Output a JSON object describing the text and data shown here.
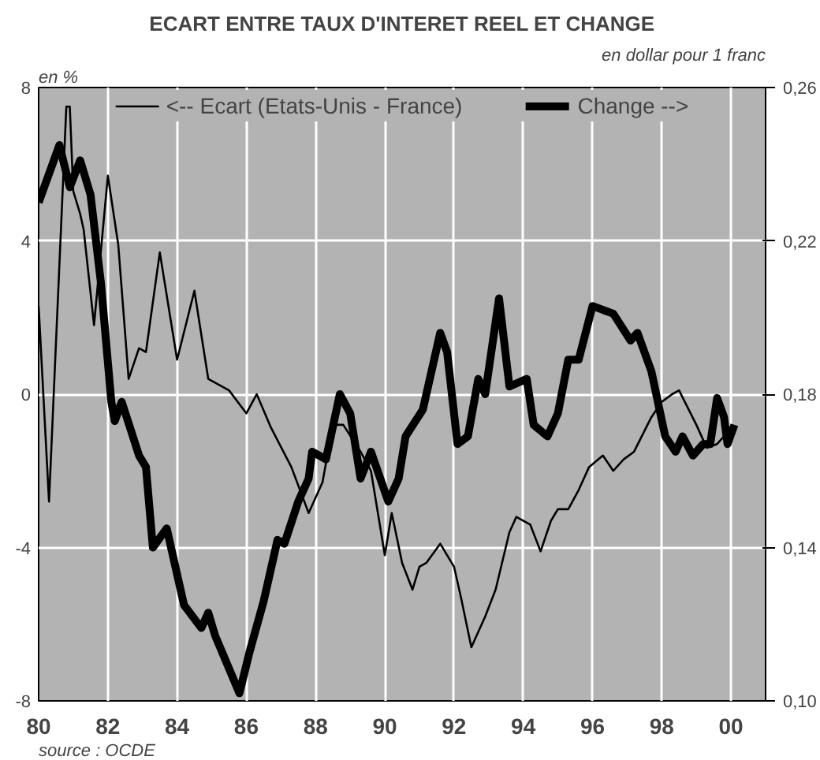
{
  "chart_data": {
    "type": "line",
    "title": "ECART ENTRE TAUX D'INTERET REEL ET CHANGE",
    "ylabel": "en %",
    "y2label": "en dollar pour 1 franc",
    "annotations": [
      "source : OCDE"
    ],
    "xlim": [
      1980,
      2001
    ],
    "xticks": [
      {
        "value": 1980,
        "label": "80"
      },
      {
        "value": 1982,
        "label": "82"
      },
      {
        "value": 1984,
        "label": "84"
      },
      {
        "value": 1986,
        "label": "86"
      },
      {
        "value": 1988,
        "label": "88"
      },
      {
        "value": 1990,
        "label": "90"
      },
      {
        "value": 1992,
        "label": "92"
      },
      {
        "value": 1994,
        "label": "94"
      },
      {
        "value": 1996,
        "label": "96"
      },
      {
        "value": 1998,
        "label": "98"
      },
      {
        "value": 2000,
        "label": "00"
      }
    ],
    "ylim": [
      -8,
      8
    ],
    "yticks": [
      -8,
      -4,
      0,
      4,
      8
    ],
    "y2lim": [
      0.1,
      0.26
    ],
    "y2ticks": [
      {
        "value": 0.1,
        "label": "0,10"
      },
      {
        "value": 0.14,
        "label": "0,14"
      },
      {
        "value": 0.18,
        "label": "0,18"
      },
      {
        "value": 0.22,
        "label": "0,22"
      },
      {
        "value": 0.26,
        "label": "0,26"
      }
    ],
    "grid": true,
    "legend": "top",
    "line_style": "solid",
    "series": [
      {
        "name": "<-- Ecart (Etats-Unis - France)",
        "color": "#000000",
        "x": [
          1980.0,
          1980.3,
          1980.8,
          1980.9,
          1981.0,
          1981.2,
          1981.3,
          1981.6,
          1982.0,
          1982.3,
          1982.6,
          1982.9,
          1983.1,
          1983.5,
          1984.0,
          1984.5,
          1984.9,
          1985.5,
          1986.0,
          1986.3,
          1986.7,
          1987.3,
          1987.8,
          1988.2,
          1988.5,
          1988.8,
          1989.3,
          1989.6,
          1990.0,
          1990.2,
          1990.5,
          1990.8,
          1991.0,
          1991.2,
          1991.6,
          1992.0,
          1992.2,
          1992.5,
          1992.9,
          1993.2,
          1993.6,
          1993.8,
          1994.2,
          1994.5,
          1994.8,
          1995.0,
          1995.3,
          1995.6,
          1995.9,
          1996.3,
          1996.6,
          1996.9,
          1997.2,
          1997.7,
          1998.0,
          1998.3,
          1998.5,
          1999.0,
          1999.3,
          1999.6,
          1999.8
        ],
        "values": [
          2.3,
          -2.8,
          7.5,
          7.5,
          5.3,
          4.7,
          4.3,
          1.8,
          5.7,
          3.9,
          0.4,
          1.2,
          1.1,
          3.7,
          0.9,
          2.7,
          0.4,
          0.1,
          -0.5,
          0.0,
          -0.85,
          -1.9,
          -3.1,
          -2.3,
          -0.8,
          -0.8,
          -1.5,
          -2.0,
          -4.2,
          -3.1,
          -4.4,
          -5.1,
          -4.5,
          -4.4,
          -3.9,
          -4.5,
          -5.3,
          -6.6,
          -5.8,
          -5.1,
          -3.6,
          -3.2,
          -3.4,
          -4.1,
          -3.3,
          -3.0,
          -3.0,
          -2.5,
          -1.9,
          -1.6,
          -2.0,
          -1.7,
          -1.5,
          -0.6,
          -0.2,
          0.0,
          0.1,
          -0.8,
          -1.4,
          -1.3,
          -1.1
        ]
      },
      {
        "name": "Change -->",
        "color": "#000000",
        "axis": "y2",
        "x": [
          1980.0,
          1980.6,
          1980.9,
          1981.2,
          1981.5,
          1981.8,
          1982.1,
          1982.2,
          1982.4,
          1982.9,
          1983.1,
          1983.3,
          1983.7,
          1984.2,
          1984.7,
          1984.9,
          1985.1,
          1985.8,
          1986.1,
          1986.5,
          1986.9,
          1987.1,
          1987.5,
          1987.8,
          1987.9,
          1988.3,
          1988.7,
          1989.0,
          1989.3,
          1989.6,
          1990.1,
          1990.4,
          1990.6,
          1991.1,
          1991.6,
          1991.8,
          1992.1,
          1992.4,
          1992.7,
          1992.9,
          1993.3,
          1993.6,
          1994.1,
          1994.3,
          1994.7,
          1995.0,
          1995.3,
          1995.6,
          1996.0,
          1996.6,
          1997.1,
          1997.3,
          1997.7,
          1998.1,
          1998.4,
          1998.6,
          1998.9,
          1999.2,
          1999.4,
          1999.6,
          1999.8,
          1999.9,
          2000.1
        ],
        "values": [
          0.23,
          0.245,
          0.234,
          0.241,
          0.232,
          0.209,
          0.178,
          0.173,
          0.178,
          0.164,
          0.161,
          0.14,
          0.145,
          0.125,
          0.119,
          0.123,
          0.117,
          0.102,
          0.113,
          0.126,
          0.142,
          0.141,
          0.152,
          0.158,
          0.165,
          0.163,
          0.18,
          0.175,
          0.158,
          0.165,
          0.152,
          0.158,
          0.169,
          0.176,
          0.196,
          0.191,
          0.167,
          0.169,
          0.184,
          0.18,
          0.205,
          0.182,
          0.184,
          0.172,
          0.169,
          0.175,
          0.189,
          0.189,
          0.203,
          0.201,
          0.194,
          0.196,
          0.186,
          0.169,
          0.165,
          0.169,
          0.164,
          0.167,
          0.167,
          0.179,
          0.174,
          0.167,
          0.172
        ]
      }
    ]
  }
}
